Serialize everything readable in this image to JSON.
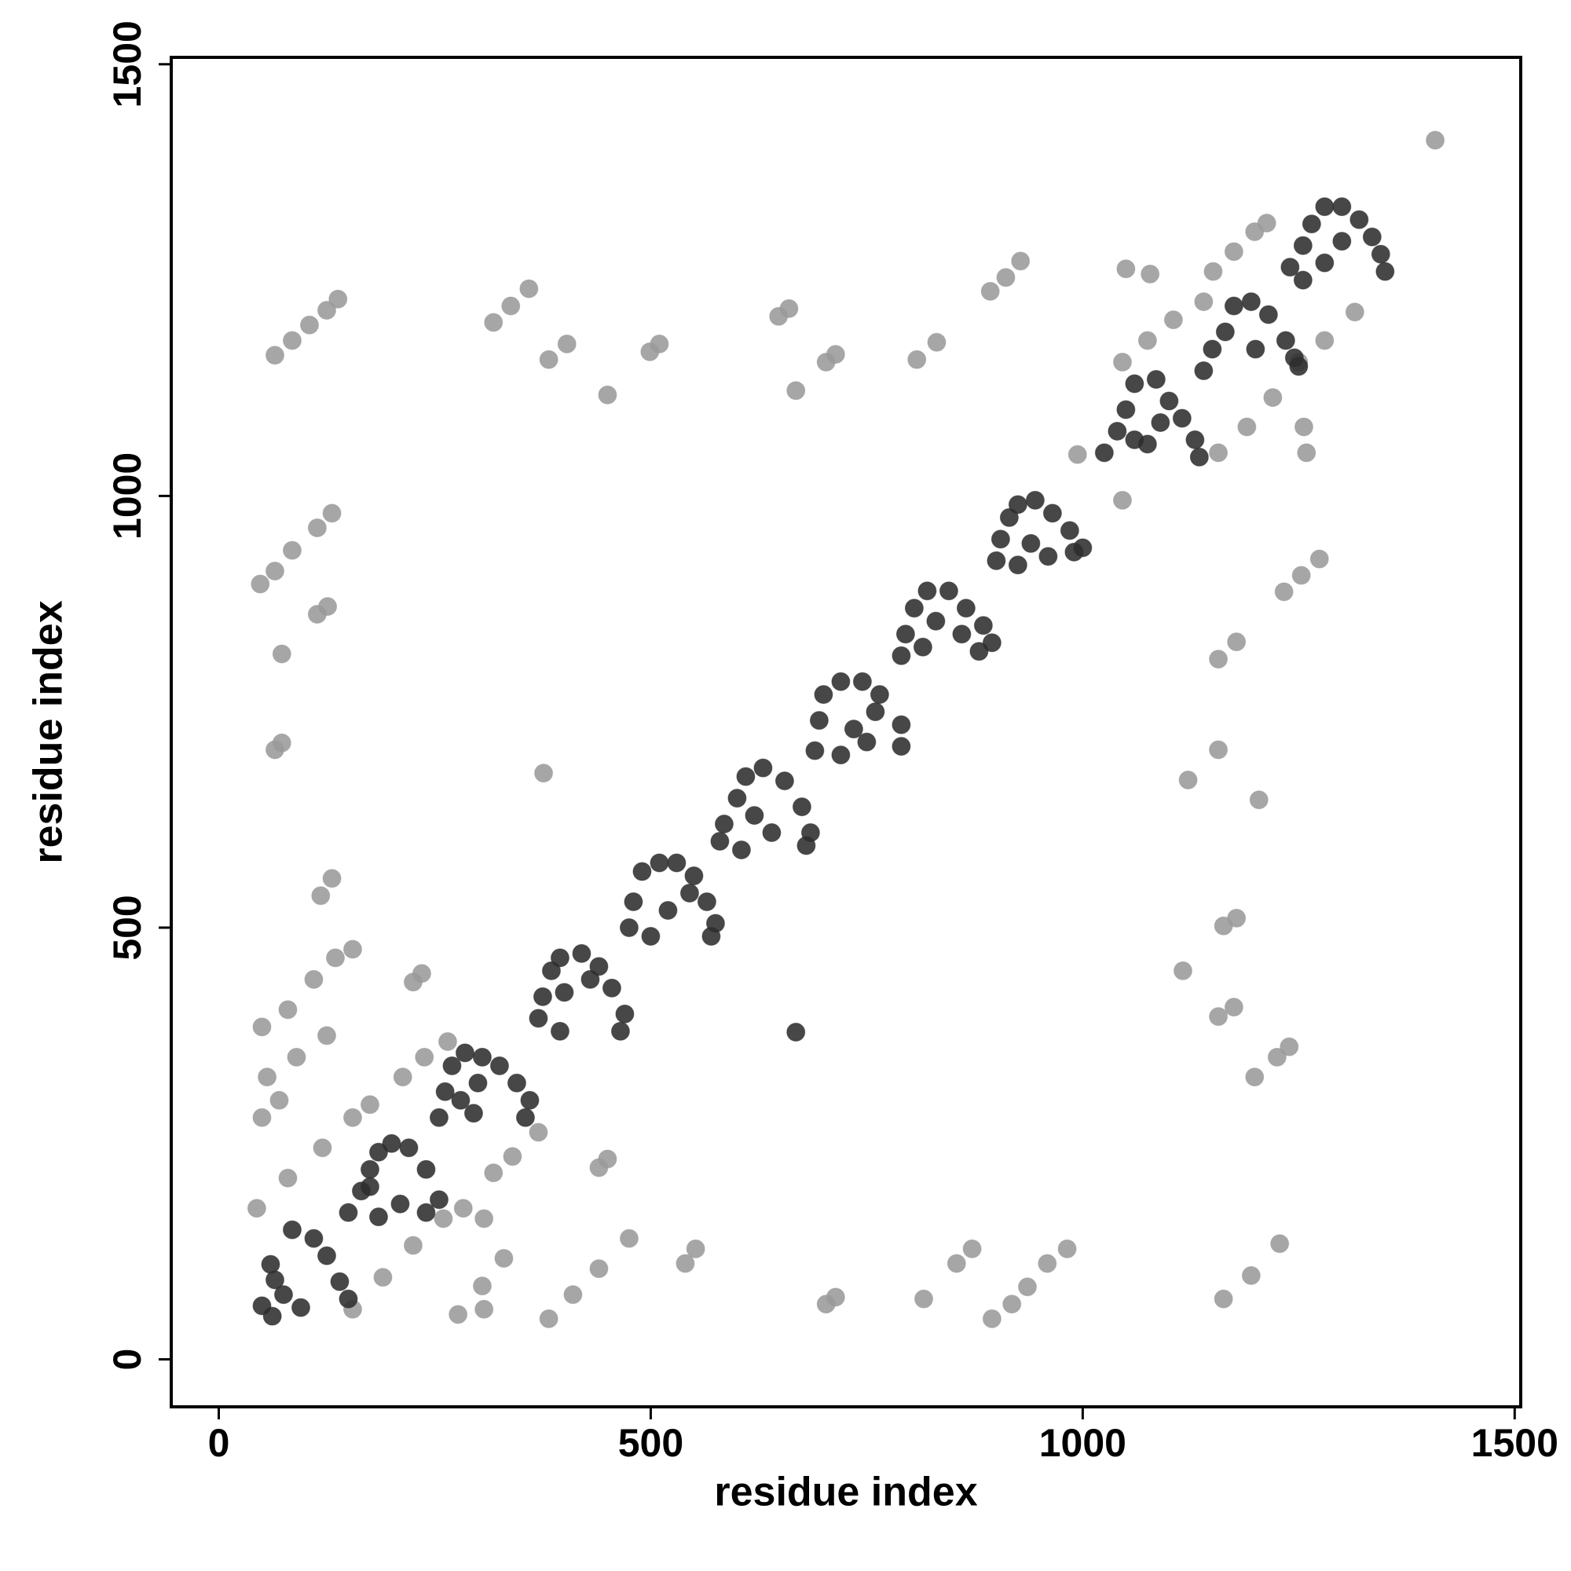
{
  "chart_data": {
    "type": "scatter",
    "xlabel": "residue index",
    "ylabel": "residue index",
    "xlim": [
      -55,
      1507
    ],
    "ylim": [
      -55,
      1508
    ],
    "xticks": [
      0,
      500,
      1000,
      1500
    ],
    "yticks": [
      0,
      500,
      1000,
      1500
    ],
    "grid": false,
    "series": [
      {
        "color": "#9a9a9a",
        "x": [
          65,
          85,
          105,
          125,
          138,
          318,
          338,
          359,
          382,
          403,
          450,
          499,
          510,
          648,
          660,
          668,
          703,
          714,
          808,
          831,
          893,
          911,
          928,
          1050,
          1078,
          1151,
          1175,
          1199,
          1213,
          1046,
          1075,
          1105,
          1140,
          1157,
          1190,
          1220,
          1250,
          1280,
          1315,
          1408,
          1256,
          1259,
          994,
          1046,
          48,
          65,
          85,
          114,
          131,
          114,
          126,
          73,
          65,
          73,
          376,
          118,
          131,
          50,
          80,
          110,
          135,
          155,
          56,
          90,
          125,
          50,
          70,
          225,
          235,
          213,
          238,
          265,
          318,
          340,
          370,
          440,
          450,
          44,
          80,
          120,
          155,
          175,
          155,
          190,
          225,
          260,
          283,
          277,
          305,
          330,
          307,
          307,
          382,
          410,
          440,
          475,
          540,
          552,
          703,
          714,
          816,
          854,
          872,
          895,
          918,
          936,
          959,
          982,
          1163,
          1195,
          1228,
          1157,
          1175,
          1199,
          1225,
          1239,
          1116,
          1163,
          1178,
          1122,
          1157,
          1204,
          1157,
          1178,
          1233,
          1253,
          1274
        ],
        "values": [
          1163,
          1180,
          1198,
          1215,
          1228,
          1201,
          1220,
          1240,
          1158,
          1176,
          1117,
          1167,
          1176,
          1208,
          1217,
          1122,
          1155,
          1164,
          1158,
          1178,
          1237,
          1253,
          1272,
          1263,
          1257,
          1260,
          1283,
          1306,
          1316,
          1155,
          1180,
          1204,
          1225,
          1050,
          1080,
          1114,
          1155,
          1180,
          1213,
          1412,
          1080,
          1050,
          1048,
          995,
          898,
          913,
          937,
          963,
          980,
          863,
          872,
          817,
          706,
          714,
          679,
          537,
          557,
          385,
          405,
          440,
          465,
          475,
          327,
          350,
          375,
          280,
          300,
          437,
          447,
          327,
          350,
          368,
          216,
          235,
          263,
          222,
          232,
          175,
          210,
          245,
          280,
          295,
          58,
          95,
          132,
          163,
          175,
          52,
          85,
          117,
          58,
          163,
          47,
          75,
          105,
          140,
          111,
          128,
          64,
          72,
          70,
          111,
          128,
          47,
          64,
          84,
          111,
          128,
          70,
          97,
          134,
          397,
          408,
          327,
          350,
          362,
          450,
          502,
          511,
          671,
          706,
          648,
          811,
          831,
          889,
          908,
          927
        ]
      },
      {
        "color": "#2e2e2e",
        "x": [
          50,
          62,
          75,
          95,
          60,
          85,
          110,
          125,
          140,
          150,
          65,
          150,
          165,
          175,
          185,
          200,
          220,
          240,
          255,
          240,
          210,
          185,
          175,
          255,
          262,
          270,
          285,
          305,
          325,
          345,
          360,
          355,
          295,
          280,
          300,
          370,
          375,
          385,
          395,
          420,
          440,
          455,
          470,
          465,
          395,
          400,
          430,
          475,
          480,
          490,
          510,
          530,
          550,
          565,
          575,
          570,
          500,
          520,
          545,
          580,
          585,
          600,
          610,
          630,
          655,
          675,
          685,
          680,
          605,
          620,
          640,
          690,
          695,
          700,
          720,
          745,
          765,
          790,
          790,
          720,
          735,
          760,
          750,
          790,
          795,
          805,
          820,
          845,
          865,
          885,
          895,
          815,
          830,
          860,
          880,
          900,
          905,
          915,
          925,
          945,
          965,
          985,
          1000,
          925,
          940,
          960,
          990,
          1025,
          1040,
          1050,
          1060,
          1085,
          1100,
          1115,
          1130,
          1135,
          1075,
          1090,
          1060,
          1140,
          1150,
          1165,
          1175,
          1195,
          1215,
          1235,
          1245,
          1250,
          1200,
          1240,
          1255,
          1265,
          1280,
          1300,
          1320,
          1335,
          1345,
          1350,
          1280,
          1300,
          1255,
          668
        ],
        "values": [
          62,
          50,
          75,
          60,
          110,
          150,
          140,
          120,
          90,
          70,
          92,
          170,
          195,
          220,
          240,
          250,
          245,
          220,
          185,
          170,
          180,
          165,
          200,
          280,
          310,
          340,
          355,
          350,
          340,
          320,
          300,
          280,
          285,
          300,
          320,
          395,
          420,
          450,
          465,
          470,
          455,
          430,
          400,
          380,
          380,
          425,
          440,
          500,
          530,
          565,
          575,
          575,
          560,
          530,
          505,
          490,
          490,
          520,
          540,
          600,
          620,
          650,
          675,
          685,
          670,
          640,
          610,
          595,
          590,
          630,
          610,
          705,
          740,
          770,
          785,
          785,
          770,
          735,
          710,
          700,
          730,
          750,
          715,
          815,
          840,
          870,
          890,
          890,
          870,
          850,
          830,
          825,
          855,
          840,
          820,
          925,
          950,
          975,
          990,
          995,
          980,
          960,
          940,
          920,
          945,
          930,
          935,
          1050,
          1075,
          1100,
          1130,
          1135,
          1110,
          1090,
          1065,
          1045,
          1060,
          1085,
          1065,
          1145,
          1170,
          1190,
          1220,
          1225,
          1210,
          1180,
          1160,
          1150,
          1170,
          1265,
          1290,
          1315,
          1335,
          1335,
          1320,
          1300,
          1280,
          1260,
          1270,
          1295,
          1250,
          379
        ]
      }
    ]
  }
}
